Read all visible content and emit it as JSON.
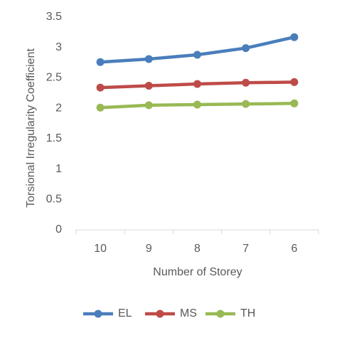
{
  "chart_data": {
    "type": "line",
    "x_label": "Number of Storey",
    "y_label": "Torsional Irregularity Coefficient",
    "categories": [
      "10",
      "9",
      "8",
      "7",
      "6"
    ],
    "series": [
      {
        "name": "EL",
        "color": "#4a7ebb",
        "values": [
          2.76,
          2.81,
          2.88,
          2.99,
          3.17
        ]
      },
      {
        "name": "MS",
        "color": "#be4b48",
        "values": [
          2.34,
          2.37,
          2.4,
          2.42,
          2.43
        ]
      },
      {
        "name": "TH",
        "color": "#98b954",
        "values": [
          2.01,
          2.05,
          2.06,
          2.07,
          2.08
        ]
      }
    ],
    "ylim": [
      0,
      3.5
    ],
    "yticks": [
      0,
      0.5,
      1,
      1.5,
      2,
      2.5,
      3,
      3.5
    ],
    "grid": false,
    "legend": "bottom"
  }
}
